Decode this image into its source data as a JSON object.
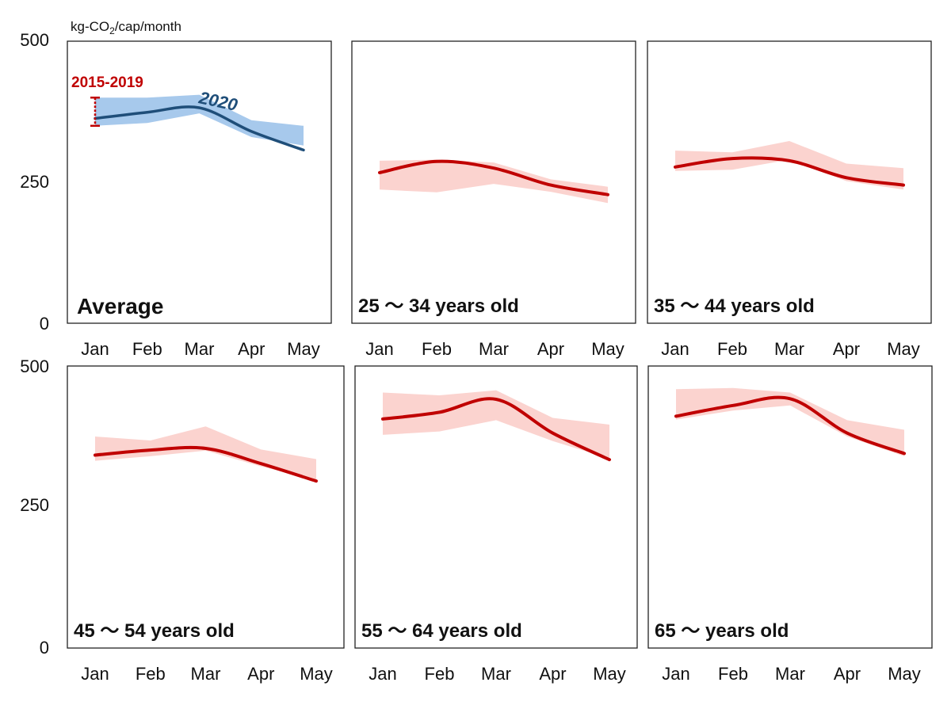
{
  "chart_data": {
    "type": "line",
    "unit_label": "kg-CO2/cap/month",
    "unit_label_parts": [
      "kg-CO",
      "2",
      "/cap/month"
    ],
    "x": [
      "Jan",
      "Feb",
      "Mar",
      "Apr",
      "May"
    ],
    "ylim": [
      0,
      500
    ],
    "y_ticks": [
      "0",
      "250",
      "500"
    ],
    "colors": {
      "avg_band": "#a7c9ec",
      "avg_line": "#1f4e79",
      "band": "#fbd3cf",
      "line": "#c00000",
      "annotation": "#c00000",
      "frame": "#222222"
    },
    "annotations": {
      "range_label": "2015-2019",
      "line_label": "2020"
    },
    "panels": [
      {
        "title": "Average",
        "series_2020": [
          363,
          374,
          382,
          340,
          307
        ],
        "band_2015_2019": {
          "upper": [
            400,
            400,
            405,
            360,
            350
          ],
          "lower": [
            350,
            355,
            372,
            330,
            315
          ]
        }
      },
      {
        "title": "25 ～ 34 years old",
        "series_2020": [
          267,
          287,
          275,
          245,
          228
        ],
        "band_2015_2019": {
          "upper": [
            288,
            290,
            285,
            255,
            242
          ],
          "lower": [
            237,
            232,
            247,
            233,
            213
          ]
        }
      },
      {
        "title": "35 ～ 44 years old",
        "series_2020": [
          277,
          292,
          288,
          258,
          245
        ],
        "band_2015_2019": {
          "upper": [
            306,
            303,
            323,
            283,
            275
          ],
          "lower": [
            270,
            272,
            290,
            252,
            237
          ]
        }
      },
      {
        "title": "45 ～ 54 years old",
        "series_2020": [
          342,
          351,
          354,
          327,
          296
        ],
        "band_2015_2019": {
          "upper": [
            375,
            368,
            393,
            352,
            335
          ],
          "lower": [
            332,
            340,
            350,
            322,
            298
          ]
        }
      },
      {
        "title": "55 ～ 64 years old",
        "series_2020": [
          406,
          418,
          441,
          381,
          334
        ],
        "band_2015_2019": {
          "upper": [
            453,
            448,
            457,
            408,
            396
          ],
          "lower": [
            378,
            384,
            404,
            367,
            336
          ]
        }
      },
      {
        "title": "65 ～ years old",
        "series_2020": [
          411,
          430,
          442,
          381,
          345
        ],
        "band_2015_2019": {
          "upper": [
            459,
            461,
            453,
            404,
            387
          ],
          "lower": [
            405,
            421,
            430,
            375,
            340
          ]
        }
      }
    ]
  }
}
